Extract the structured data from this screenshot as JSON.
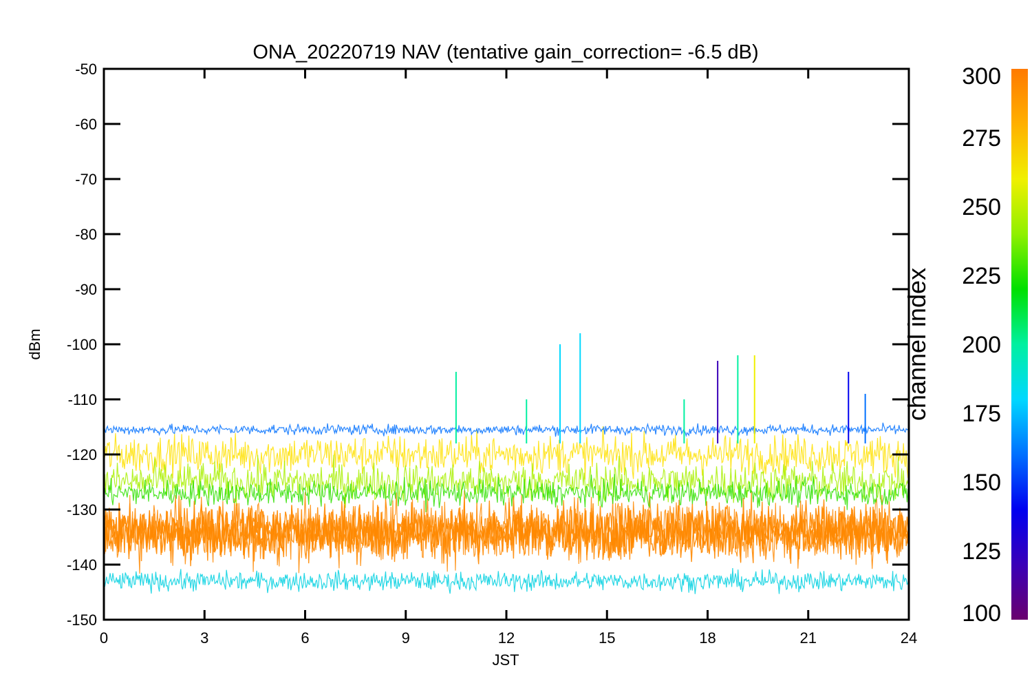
{
  "chart_data": {
    "type": "line",
    "title": "ONA_20220719 NAV (tentative gain_correction= -6.5 dB)",
    "xlabel": "JST",
    "ylabel": "dBm",
    "xlim": [
      0,
      24
    ],
    "ylim": [
      -150,
      -50
    ],
    "x_ticks": [
      0,
      3,
      6,
      9,
      12,
      15,
      18,
      21,
      24
    ],
    "y_ticks": [
      -50,
      -60,
      -70,
      -80,
      -90,
      -100,
      -110,
      -120,
      -130,
      -140,
      -150
    ],
    "grid": false,
    "colorbar": {
      "label": "channel index",
      "range": [
        100,
        300
      ],
      "ticks": [
        300,
        275,
        250,
        225,
        200,
        175,
        150,
        125,
        100
      ],
      "colors": [
        "#6a006e",
        "#3a00b8",
        "#0000f0",
        "#0070ff",
        "#00d8ff",
        "#00f0a0",
        "#00e000",
        "#90f000",
        "#f0f000",
        "#ffb000",
        "#ff7a00"
      ]
    },
    "series": [
      {
        "channel_index": 295,
        "color": "#ff8800",
        "dbm_center": -134,
        "dbm_spread": 5
      },
      {
        "channel_index": 270,
        "color": "#ffe000",
        "dbm_center": -120,
        "dbm_spread": 3
      },
      {
        "channel_index": 255,
        "color": "#a8f000",
        "dbm_center": -125,
        "dbm_spread": 3
      },
      {
        "channel_index": 235,
        "color": "#30e000",
        "dbm_center": -127,
        "dbm_spread": 2
      },
      {
        "channel_index": 160,
        "color": "#0070ff",
        "dbm_center": -115.5,
        "dbm_spread": 0.8
      },
      {
        "channel_index": 185,
        "color": "#00d0e0",
        "dbm_center": -143,
        "dbm_spread": 1.5
      }
    ],
    "spikes": [
      {
        "x": 10.5,
        "y": -105,
        "channel_index": 190
      },
      {
        "x": 13.6,
        "y": -100,
        "channel_index": 180
      },
      {
        "x": 14.2,
        "y": -98,
        "channel_index": 180
      },
      {
        "x": 12.6,
        "y": -110,
        "channel_index": 200
      },
      {
        "x": 17.3,
        "y": -110,
        "channel_index": 200
      },
      {
        "x": 18.3,
        "y": -103,
        "channel_index": 110
      },
      {
        "x": 18.9,
        "y": -102,
        "channel_index": 200
      },
      {
        "x": 19.4,
        "y": -102,
        "channel_index": 260
      },
      {
        "x": 22.2,
        "y": -105,
        "channel_index": 135
      },
      {
        "x": 22.7,
        "y": -109,
        "channel_index": 150
      }
    ]
  }
}
